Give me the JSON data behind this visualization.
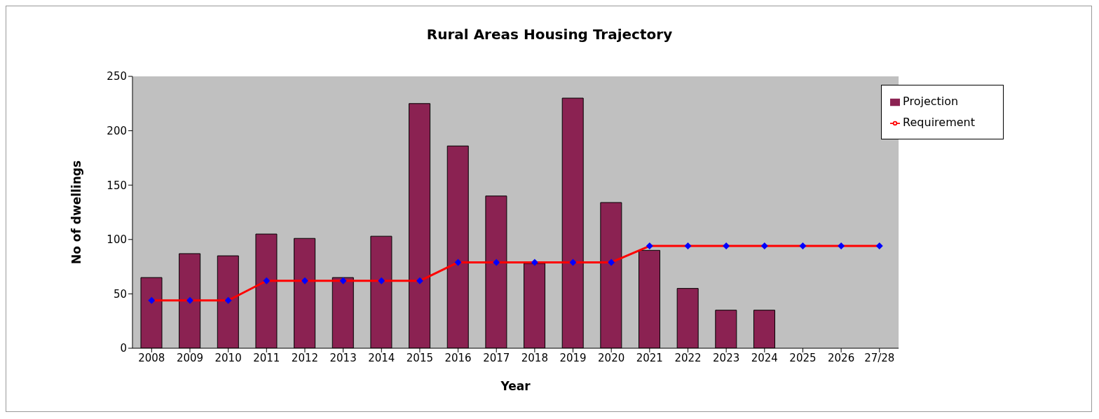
{
  "chart_data": {
    "type": "bar",
    "title": "Rural Areas Housing Trajectory",
    "xlabel": "Year",
    "ylabel": "No of dwellings",
    "categories": [
      "2008",
      "2009",
      "2010",
      "2011",
      "2012",
      "2013",
      "2014",
      "2015",
      "2016",
      "2017",
      "2018",
      "2019",
      "2020",
      "2021",
      "2022",
      "2023",
      "2024",
      "2025",
      "2026",
      "27/28"
    ],
    "series": [
      {
        "name": "Projection",
        "color": "#8b2252",
        "values": [
          65,
          87,
          85,
          105,
          101,
          65,
          103,
          225,
          186,
          140,
          78,
          230,
          134,
          90,
          55,
          35,
          35,
          null,
          null,
          null
        ]
      },
      {
        "name": "Requirement",
        "type": "line",
        "color": "#ff0000",
        "marker": "diamond",
        "values": [
          44,
          44,
          44,
          62,
          62,
          62,
          62,
          62,
          79,
          79,
          79,
          79,
          79,
          94,
          94,
          94,
          94,
          94,
          94,
          94
        ]
      }
    ],
    "ylim": [
      0,
      250
    ],
    "yticks": [
      0,
      50,
      100,
      150,
      200,
      250
    ],
    "grid": false,
    "legend": "top right"
  }
}
